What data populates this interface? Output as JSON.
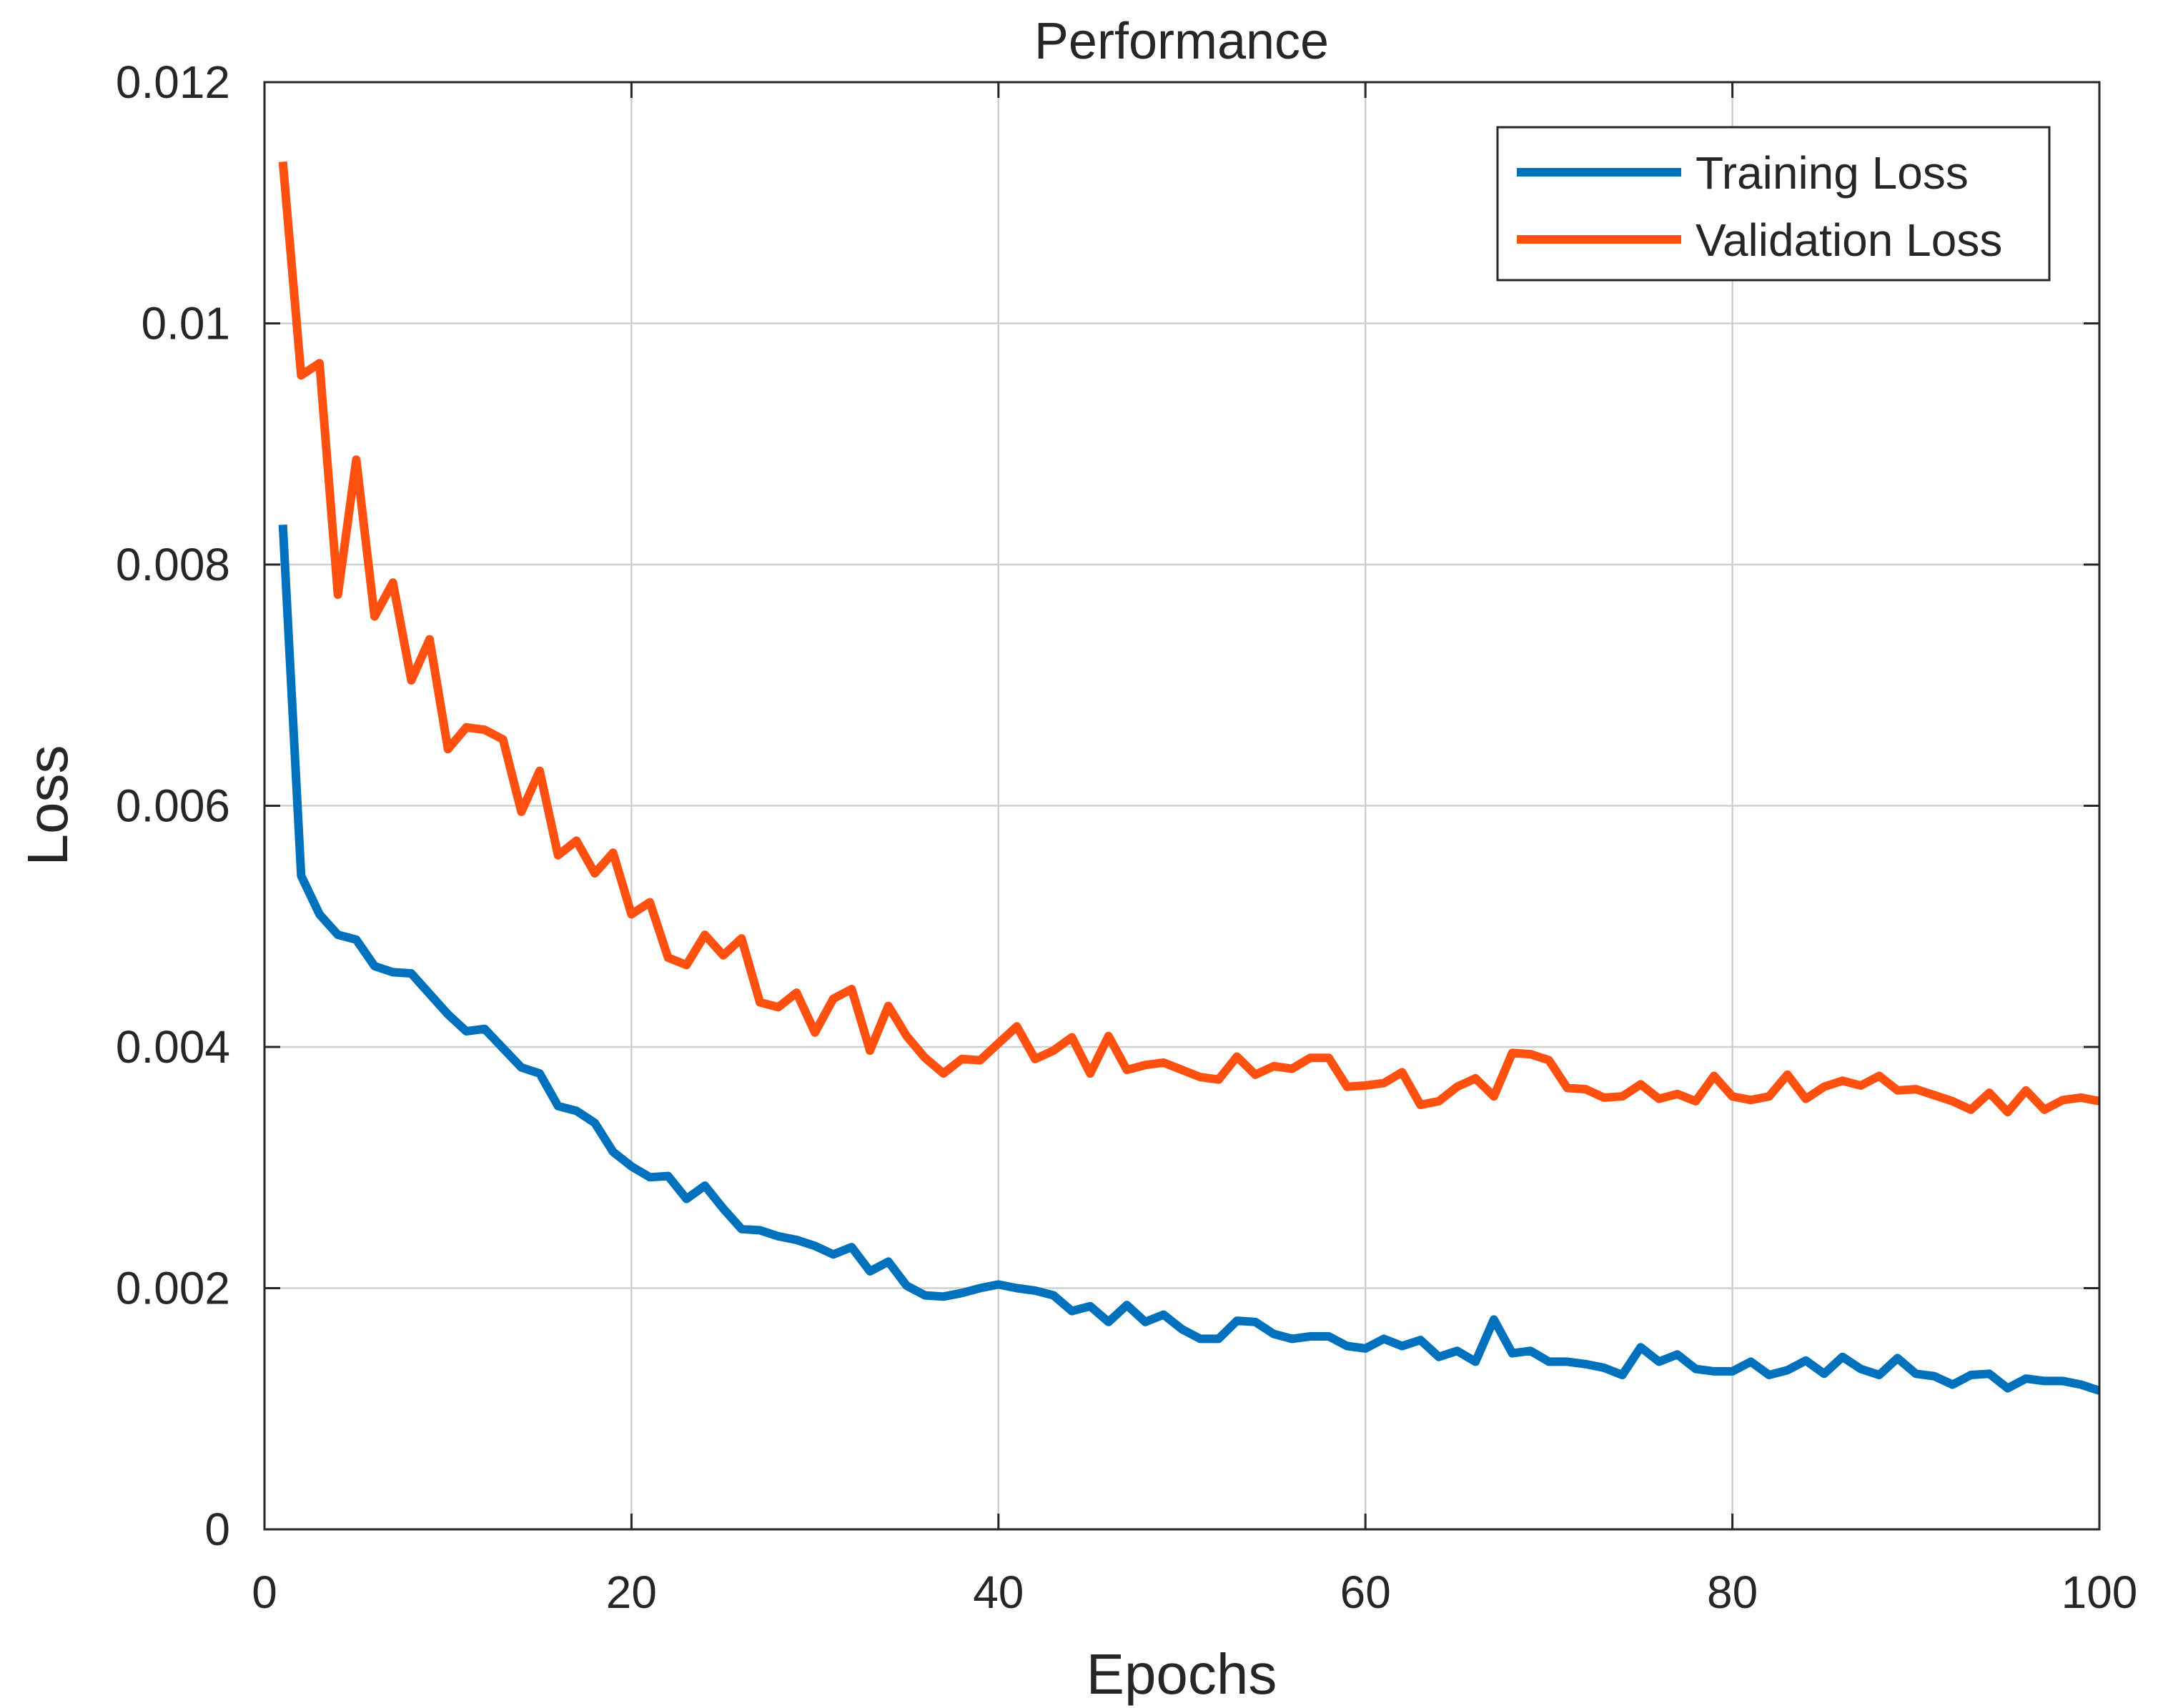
{
  "chart_data": {
    "type": "line",
    "title": "Performance",
    "xlabel": "Epochs",
    "ylabel": "Loss",
    "xlim": [
      0,
      100
    ],
    "ylim": [
      0,
      0.012
    ],
    "grid": true,
    "legend_position": "top-right",
    "x_ticks": [
      0,
      20,
      40,
      60,
      80,
      100
    ],
    "x_tick_labels": [
      "0",
      "20",
      "40",
      "60",
      "80",
      "100"
    ],
    "y_ticks": [
      0,
      0.002,
      0.004,
      0.006,
      0.008,
      0.01,
      0.012
    ],
    "y_tick_labels": [
      "0",
      "0.002",
      "0.004",
      "0.006",
      "0.008",
      "0.01",
      "0.012"
    ],
    "x": [
      1,
      2,
      3,
      4,
      5,
      6,
      7,
      8,
      9,
      10,
      11,
      12,
      13,
      14,
      15,
      16,
      17,
      18,
      19,
      20,
      21,
      22,
      23,
      24,
      25,
      26,
      27,
      28,
      29,
      30,
      31,
      32,
      33,
      34,
      35,
      36,
      37,
      38,
      39,
      40,
      41,
      42,
      43,
      44,
      45,
      46,
      47,
      48,
      49,
      50,
      51,
      52,
      53,
      54,
      55,
      56,
      57,
      58,
      59,
      60,
      61,
      62,
      63,
      64,
      65,
      66,
      67,
      68,
      69,
      70,
      71,
      72,
      73,
      74,
      75,
      76,
      77,
      78,
      79,
      80,
      81,
      82,
      83,
      84,
      85,
      86,
      87,
      88,
      89,
      90,
      91,
      92,
      93,
      94,
      95,
      96,
      97,
      98,
      99,
      100
    ],
    "series": [
      {
        "name": "Training Loss",
        "color": "#0072BD",
        "values": [
          0.00833,
          0.00542,
          0.0051,
          0.00493,
          0.00489,
          0.00467,
          0.00462,
          0.00461,
          0.00444,
          0.00427,
          0.00413,
          0.00415,
          0.00399,
          0.00383,
          0.00378,
          0.00351,
          0.00347,
          0.00337,
          0.00313,
          0.00301,
          0.00292,
          0.00293,
          0.00274,
          0.00285,
          0.00266,
          0.00249,
          0.00248,
          0.00243,
          0.0024,
          0.00235,
          0.00228,
          0.00234,
          0.00214,
          0.00222,
          0.00202,
          0.00194,
          0.00193,
          0.00196,
          0.002,
          0.00203,
          0.002,
          0.00198,
          0.00194,
          0.00181,
          0.00185,
          0.00172,
          0.00186,
          0.00172,
          0.00178,
          0.00166,
          0.00158,
          0.00158,
          0.00173,
          0.00172,
          0.00162,
          0.00158,
          0.0016,
          0.0016,
          0.00152,
          0.0015,
          0.00158,
          0.00152,
          0.00157,
          0.00143,
          0.00148,
          0.00139,
          0.00174,
          0.00146,
          0.00148,
          0.00139,
          0.00139,
          0.00137,
          0.00134,
          0.00128,
          0.00151,
          0.00139,
          0.00145,
          0.00133,
          0.00131,
          0.00131,
          0.00139,
          0.00128,
          0.00132,
          0.0014,
          0.00129,
          0.00143,
          0.00133,
          0.00128,
          0.00142,
          0.00129,
          0.00127,
          0.0012,
          0.00128,
          0.00129,
          0.00117,
          0.00125,
          0.00123,
          0.00123,
          0.0012,
          0.00115
        ]
      },
      {
        "name": "Validation Loss",
        "color": "#FF5010",
        "values": [
          0.01134,
          0.00957,
          0.00967,
          0.00775,
          0.00887,
          0.00757,
          0.00785,
          0.00704,
          0.00738,
          0.00647,
          0.00665,
          0.00663,
          0.00655,
          0.00595,
          0.00629,
          0.00559,
          0.00571,
          0.00544,
          0.00561,
          0.0051,
          0.0052,
          0.00474,
          0.00468,
          0.00493,
          0.00476,
          0.0049,
          0.00437,
          0.00433,
          0.00445,
          0.00412,
          0.0044,
          0.00448,
          0.00397,
          0.00434,
          0.00409,
          0.00391,
          0.00378,
          0.0039,
          0.00389,
          0.00403,
          0.00417,
          0.0039,
          0.00397,
          0.00408,
          0.00378,
          0.00409,
          0.00381,
          0.00385,
          0.00387,
          0.00381,
          0.00375,
          0.00373,
          0.00392,
          0.00377,
          0.00384,
          0.00382,
          0.00391,
          0.00391,
          0.00367,
          0.00368,
          0.0037,
          0.00379,
          0.00352,
          0.00355,
          0.00367,
          0.00374,
          0.00359,
          0.00395,
          0.00394,
          0.00389,
          0.00366,
          0.00365,
          0.00358,
          0.00359,
          0.00369,
          0.00357,
          0.00361,
          0.00355,
          0.00376,
          0.00359,
          0.00356,
          0.00359,
          0.00377,
          0.00357,
          0.00367,
          0.00372,
          0.00368,
          0.00376,
          0.00364,
          0.00365,
          0.0036,
          0.00355,
          0.00348,
          0.00362,
          0.00346,
          0.00364,
          0.00348,
          0.00356,
          0.00358,
          0.00355
        ]
      }
    ]
  }
}
